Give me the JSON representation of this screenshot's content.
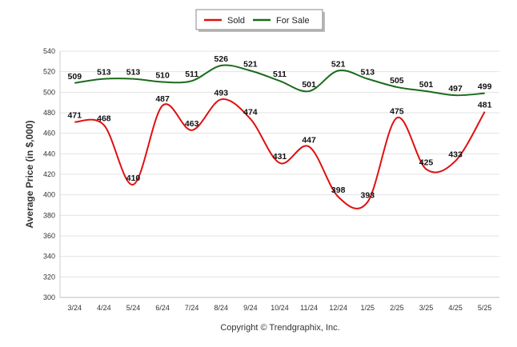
{
  "chart_data": {
    "type": "line",
    "title": "",
    "xlabel": "",
    "ylabel": "Average Price (in $,000)",
    "categories": [
      "3/24",
      "4/24",
      "5/24",
      "6/24",
      "7/24",
      "8/24",
      "9/24",
      "10/24",
      "11/24",
      "12/24",
      "1/25",
      "2/25",
      "3/25",
      "4/25",
      "5/25"
    ],
    "series": [
      {
        "name": "Sold",
        "color": "#e01010",
        "values": [
          471,
          468,
          410,
          487,
          463,
          493,
          474,
          431,
          447,
          398,
          393,
          475,
          425,
          433,
          481
        ]
      },
      {
        "name": "For Sale",
        "color": "#1a6b1a",
        "values": [
          509,
          513,
          513,
          510,
          511,
          526,
          521,
          511,
          501,
          521,
          513,
          505,
          501,
          497,
          499
        ]
      }
    ],
    "ylim": [
      300,
      540
    ],
    "yticks": [
      "300",
      "320",
      "340",
      "360",
      "380",
      "400",
      "420",
      "440",
      "460",
      "480",
      "500",
      "520",
      "540"
    ],
    "ytick_step": 20,
    "grid": true,
    "legend": "top-center"
  },
  "copyright": "Copyright © Trendgraphix, Inc."
}
